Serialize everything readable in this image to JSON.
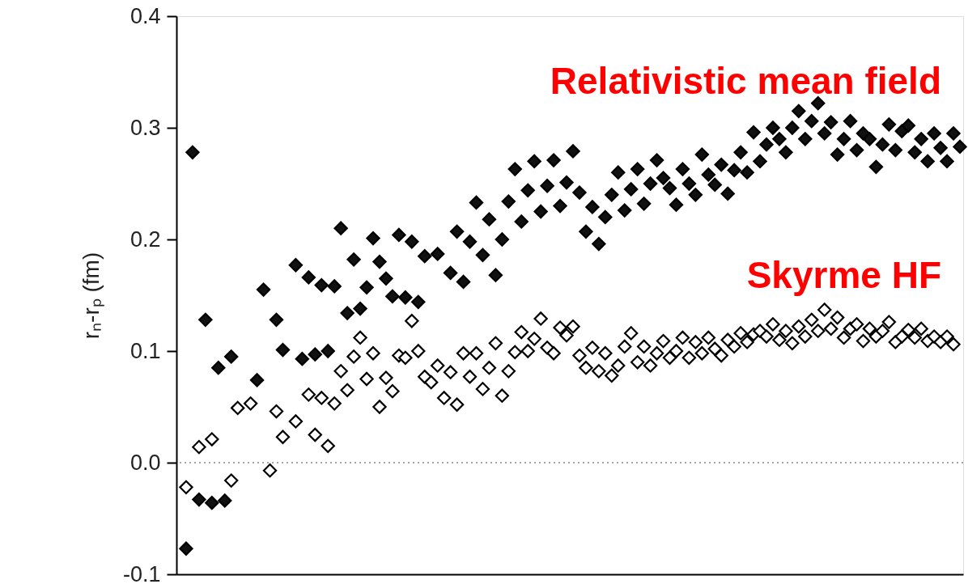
{
  "chart_data": {
    "type": "scatter",
    "ylabel": "rₙ-rₚ (fm)",
    "categories": [
      null,
      null,
      null,
      null,
      null,
      null,
      null,
      null,
      null,
      null,
      null,
      null,
      null,
      null,
      null,
      null,
      null,
      null,
      null,
      null,
      null,
      null,
      null,
      null,
      null,
      null,
      null,
      null,
      null,
      null,
      null,
      null,
      null,
      null,
      null,
      null,
      null,
      null,
      null,
      null,
      null,
      null,
      null,
      null,
      null,
      null,
      null,
      null,
      null,
      null,
      null,
      null,
      null,
      null,
      null,
      null,
      null,
      null,
      null,
      null,
      null,
      null,
      null,
      null,
      null,
      null,
      null,
      null,
      null,
      null,
      null,
      null,
      null,
      null,
      null,
      null,
      null,
      null,
      null,
      null,
      null,
      null,
      null,
      null,
      null,
      null,
      null,
      null,
      null,
      null,
      null,
      null,
      null,
      null,
      null,
      null,
      null,
      null,
      null,
      null,
      null,
      null,
      null,
      null,
      null,
      null,
      null,
      null,
      null,
      null,
      null,
      null,
      null,
      null,
      null,
      null,
      null,
      null,
      null,
      null,
      null,
      null
    ],
    "series": [
      {
        "color": "#111111",
        "values": [
          null,
          -0.077,
          0.278,
          -0.033,
          0.128,
          -0.036,
          0.085,
          -0.034,
          0.095,
          null,
          null,
          null,
          0.074,
          0.155,
          null,
          0.128,
          0.101,
          null,
          0.177,
          0.093,
          0.166,
          0.097,
          0.159,
          0.1,
          0.158,
          0.21,
          0.134,
          0.182,
          0.138,
          0.157,
          0.201,
          0.18,
          0.165,
          0.149,
          0.204,
          0.148,
          0.198,
          0.144,
          0.185,
          null,
          0.187,
          null,
          0.17,
          0.207,
          0.162,
          0.198,
          0.233,
          0.186,
          0.218,
          0.168,
          0.2,
          0.234,
          0.263,
          0.216,
          0.244,
          0.27,
          0.225,
          0.248,
          0.271,
          0.23,
          0.251,
          0.279,
          0.242,
          0.207,
          0.229,
          0.196,
          0.22,
          0.24,
          0.26,
          0.226,
          0.245,
          0.263,
          0.232,
          0.25,
          0.271,
          0.255,
          0.246,
          0.231,
          0.263,
          0.25,
          0.24,
          0.276,
          0.258,
          0.249,
          0.267,
          0.241,
          0.262,
          0.278,
          0.26,
          0.296,
          0.27,
          0.285,
          0.3,
          0.29,
          0.278,
          0.3,
          0.315,
          0.29,
          0.306,
          0.322,
          0.295,
          0.305,
          0.276,
          0.29,
          0.306,
          0.28,
          0.295,
          0.29,
          0.265,
          0.285,
          0.303,
          0.28,
          0.297,
          0.302,
          0.278,
          0.29,
          0.27,
          0.295,
          0.282,
          0.27,
          0.295,
          0.283
        ]
      },
      {
        "color": "#ffffff",
        "values": [
          null,
          -0.022,
          null,
          0.014,
          null,
          0.021,
          null,
          null,
          -0.016,
          0.049,
          null,
          0.053,
          null,
          null,
          -0.007,
          0.046,
          0.023,
          null,
          0.037,
          null,
          0.061,
          0.025,
          0.058,
          0.015,
          0.053,
          0.082,
          0.065,
          0.095,
          0.112,
          0.075,
          0.098,
          0.05,
          0.076,
          0.064,
          0.096,
          0.094,
          0.127,
          0.1,
          0.077,
          0.072,
          0.087,
          0.058,
          0.081,
          0.052,
          0.098,
          0.077,
          0.098,
          0.066,
          0.085,
          0.107,
          0.06,
          0.082,
          0.099,
          0.117,
          0.1,
          0.111,
          0.129,
          0.103,
          0.098,
          0.121,
          0.114,
          0.122,
          0.096,
          0.085,
          0.103,
          0.082,
          0.098,
          0.078,
          0.087,
          0.104,
          0.116,
          0.09,
          0.104,
          0.087,
          0.098,
          0.109,
          0.094,
          0.1,
          0.112,
          0.094,
          0.108,
          0.098,
          0.112,
          0.102,
          0.096,
          0.11,
          0.104,
          0.116,
          0.108,
          0.115,
          0.118,
          0.113,
          0.124,
          0.11,
          0.118,
          0.107,
          0.122,
          0.113,
          0.128,
          0.118,
          0.137,
          0.12,
          0.13,
          0.112,
          0.12,
          0.124,
          0.109,
          0.12,
          0.113,
          0.118,
          0.126,
          0.108,
          0.113,
          0.119,
          0.112,
          0.12,
          0.109,
          0.113,
          0.108,
          0.113,
          0.106,
          null
        ]
      }
    ],
    "ylim": [
      -0.1,
      0.4
    ],
    "yticks": [
      -0.1,
      {
        "value": 0,
        "label": "0.0"
      },
      0.1,
      0.2,
      0.3,
      0.4
    ],
    "ref_lines": [
      {
        "axis": "y",
        "value": 0,
        "line_style": "dotted",
        "color": "#888888"
      }
    ],
    "annotations": [
      "Relativistic mean field",
      "Skyrme HF"
    ],
    "marker": "diamond",
    "grid": false
  }
}
